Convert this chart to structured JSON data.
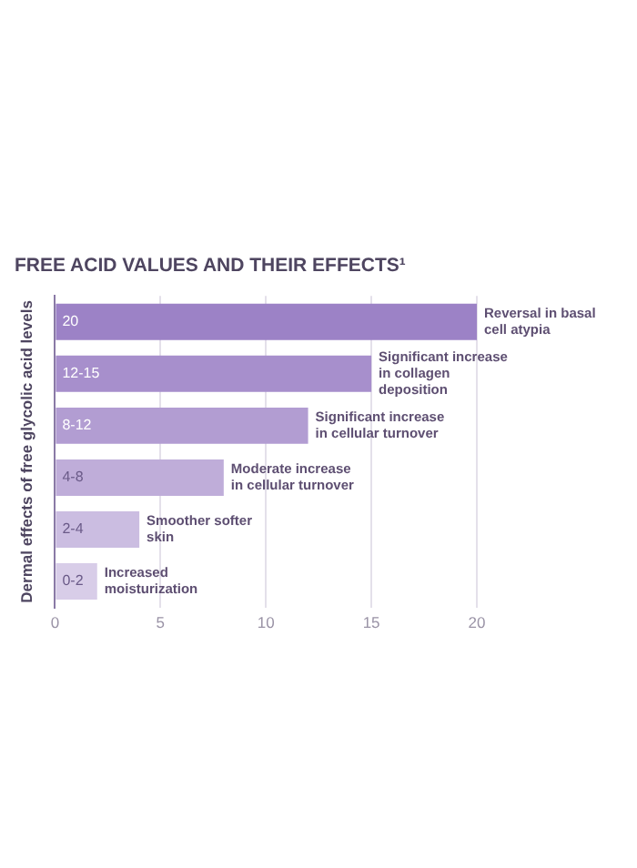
{
  "chart_data": {
    "type": "bar",
    "orientation": "horizontal",
    "title": "FREE ACID VALUES AND THEIR EFFECTS¹",
    "ylabel": "Dermal effects of free glycolic acid levels",
    "categories": [
      "20",
      "12-15",
      "8-12",
      "4-8",
      "2-4",
      "0-2"
    ],
    "values": [
      20,
      15,
      12,
      8,
      4,
      2
    ],
    "colors": [
      "#9c82c6",
      "#a78fcc",
      "#b29dd2",
      "#bfadd9",
      "#cbbde1",
      "#d8cde8"
    ],
    "xlim": [
      0,
      20
    ],
    "xticks": [
      0,
      5,
      10,
      15,
      20
    ],
    "grid": "x",
    "annotations": [
      {
        "text": "Reversal in basal cell atypia",
        "x": 20,
        "y": "20"
      },
      {
        "text": "Significant increase in collagen deposition",
        "x": 15,
        "y": "12-15"
      },
      {
        "text": "Significant increase in cellular turnover",
        "x": 12,
        "y": "8-12"
      },
      {
        "text": "Moderate increase in cellular turnover",
        "x": 8,
        "y": "4-8"
      },
      {
        "text": "Smoother softer skin",
        "x": 4,
        "y": "2-4"
      },
      {
        "text": "Increased moisturization",
        "x": 2,
        "y": "0-2"
      }
    ]
  }
}
